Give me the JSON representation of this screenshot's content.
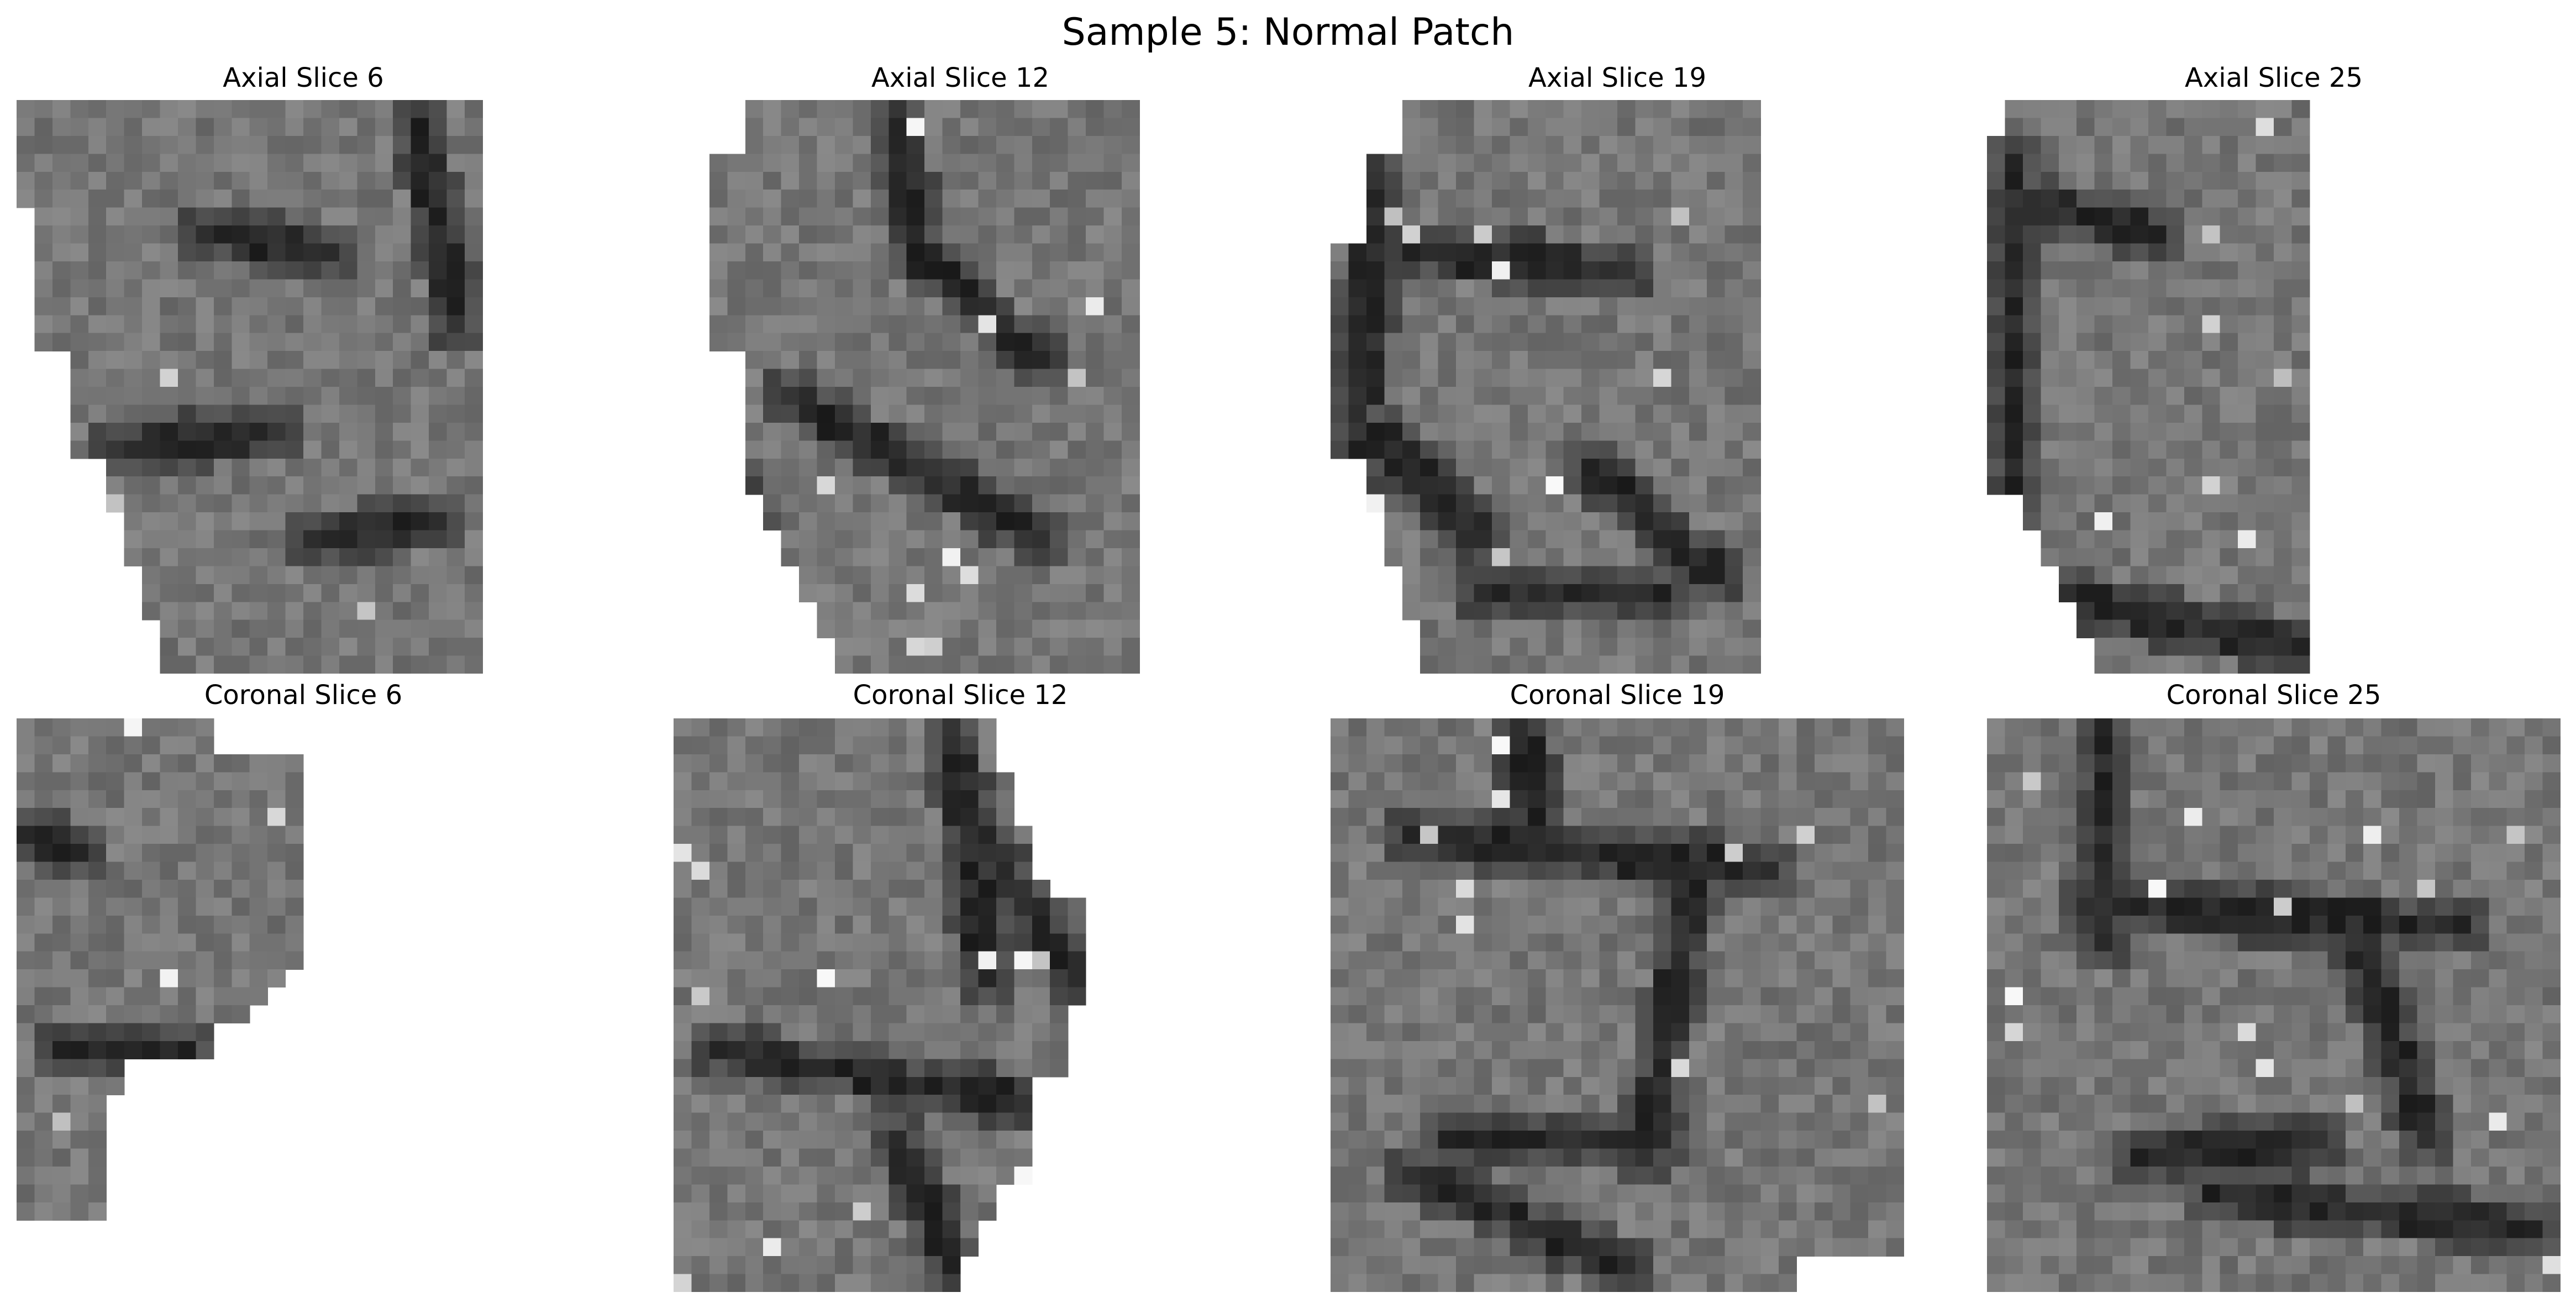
{
  "figure": {
    "title": "Sample 5: Normal Patch"
  },
  "panels": [
    {
      "title": "Axial Slice 6",
      "cmap": "gray",
      "shape": "axial-6"
    },
    {
      "title": "Axial Slice 12",
      "cmap": "gray",
      "shape": "axial-12"
    },
    {
      "title": "Axial Slice 19",
      "cmap": "gray",
      "shape": "axial-19"
    },
    {
      "title": "Axial Slice 25",
      "cmap": "gray",
      "shape": "axial-25"
    },
    {
      "title": "Coronal Slice 6",
      "cmap": "gray",
      "shape": "coronal-6"
    },
    {
      "title": "Coronal Slice 12",
      "cmap": "gray",
      "shape": "coronal-12"
    },
    {
      "title": "Coronal Slice 19",
      "cmap": "gray",
      "shape": "coronal-19"
    },
    {
      "title": "Coronal Slice 25",
      "cmap": "gray",
      "shape": "coronal-25"
    }
  ]
}
